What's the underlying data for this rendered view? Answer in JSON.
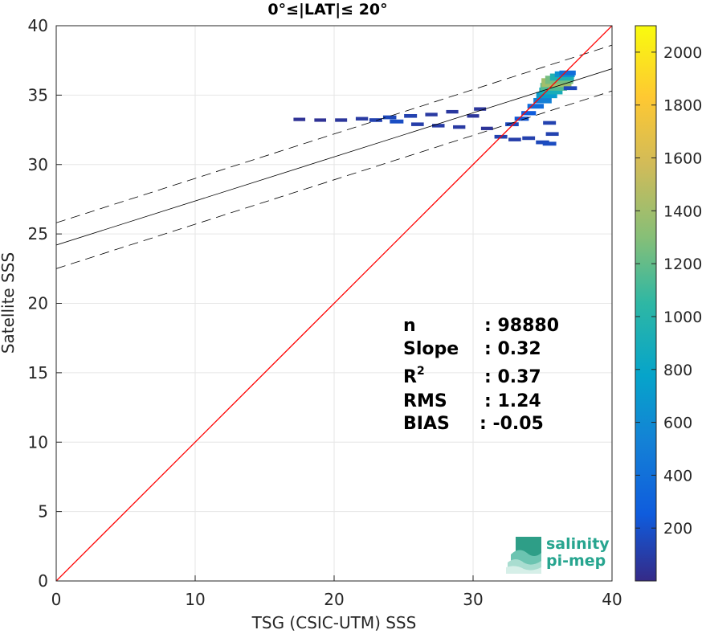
{
  "chart_data": {
    "type": "scatter",
    "title": "0°≤|LAT|≤ 20°",
    "xlabel": "TSG (CSIC-UTM) SSS",
    "ylabel": "Satellite SSS",
    "xlim": [
      0,
      40
    ],
    "ylim": [
      0,
      40
    ],
    "xticks": [
      "0",
      "10",
      "20",
      "30",
      "40"
    ],
    "yticks": [
      "0",
      "5",
      "10",
      "15",
      "20",
      "25",
      "30",
      "35",
      "40"
    ],
    "grid": true,
    "colorbar": {
      "range": [
        0,
        2100
      ],
      "ticks": [
        "200",
        "400",
        "600",
        "800",
        "1000",
        "1200",
        "1400",
        "1600",
        "1800",
        "2000"
      ],
      "colormap": "parula"
    },
    "one_to_one_line": {
      "color": "#ff0000",
      "x": [
        0,
        40
      ],
      "y": [
        0,
        40
      ]
    },
    "regression_line": {
      "color": "#000000",
      "x": [
        0,
        40
      ],
      "y": [
        24.2,
        36.9
      ]
    },
    "confidence_lines": [
      {
        "x": [
          0,
          40
        ],
        "y": [
          25.8,
          38.6
        ]
      },
      {
        "x": [
          0,
          40
        ],
        "y": [
          22.5,
          35.3
        ]
      }
    ],
    "density_clusters": [
      {
        "x": 17.5,
        "y": 33.25,
        "count": 40
      },
      {
        "x": 19.0,
        "y": 33.2,
        "count": 40
      },
      {
        "x": 20.5,
        "y": 33.2,
        "count": 60
      },
      {
        "x": 22.0,
        "y": 33.3,
        "count": 80
      },
      {
        "x": 23.0,
        "y": 33.2,
        "count": 120
      },
      {
        "x": 24.0,
        "y": 33.4,
        "count": 150
      },
      {
        "x": 24.5,
        "y": 33.1,
        "count": 180
      },
      {
        "x": 25.5,
        "y": 33.5,
        "count": 120
      },
      {
        "x": 26.0,
        "y": 32.9,
        "count": 100
      },
      {
        "x": 27.0,
        "y": 33.6,
        "count": 80
      },
      {
        "x": 27.5,
        "y": 32.8,
        "count": 90
      },
      {
        "x": 28.5,
        "y": 33.8,
        "count": 70
      },
      {
        "x": 29.0,
        "y": 32.7,
        "count": 80
      },
      {
        "x": 30.0,
        "y": 33.5,
        "count": 60
      },
      {
        "x": 30.5,
        "y": 34.0,
        "count": 60
      },
      {
        "x": 31.0,
        "y": 32.6,
        "count": 50
      },
      {
        "x": 32.0,
        "y": 32.0,
        "count": 120
      },
      {
        "x": 33.0,
        "y": 31.8,
        "count": 100
      },
      {
        "x": 34.0,
        "y": 31.9,
        "count": 110
      },
      {
        "x": 35.0,
        "y": 31.6,
        "count": 150
      },
      {
        "x": 35.5,
        "y": 31.5,
        "count": 170
      },
      {
        "x": 32.8,
        "y": 32.9,
        "count": 160
      },
      {
        "x": 33.5,
        "y": 33.3,
        "count": 220
      },
      {
        "x": 34.0,
        "y": 33.7,
        "count": 250
      },
      {
        "x": 34.5,
        "y": 34.2,
        "count": 380
      },
      {
        "x": 35.0,
        "y": 34.6,
        "count": 520
      },
      {
        "x": 35.3,
        "y": 35.0,
        "count": 720
      },
      {
        "x": 35.6,
        "y": 35.3,
        "count": 900
      },
      {
        "x": 35.8,
        "y": 35.6,
        "count": 1150
      },
      {
        "x": 36.0,
        "y": 35.9,
        "count": 1400
      },
      {
        "x": 36.2,
        "y": 36.1,
        "count": 1250
      },
      {
        "x": 36.4,
        "y": 36.3,
        "count": 950
      },
      {
        "x": 36.6,
        "y": 36.5,
        "count": 650
      },
      {
        "x": 36.8,
        "y": 36.6,
        "count": 380
      },
      {
        "x": 35.5,
        "y": 33.0,
        "count": 120
      },
      {
        "x": 35.7,
        "y": 32.2,
        "count": 120
      },
      {
        "x": 37.0,
        "y": 35.5,
        "count": 150
      }
    ]
  },
  "stats": [
    {
      "label": "n",
      "value": ": 98880"
    },
    {
      "label": "Slope",
      "value": ": 0.32"
    },
    {
      "label": "R2",
      "value": ": 0.37"
    },
    {
      "label": "RMS",
      "value": ": 1.24"
    },
    {
      "label": "BIAS",
      "value": ": -0.05"
    }
  ],
  "logo": {
    "line1": "salinity",
    "line2": "pi-mep"
  }
}
